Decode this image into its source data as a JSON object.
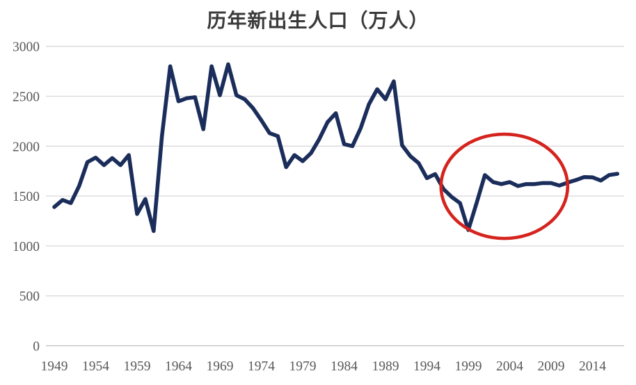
{
  "chart": {
    "title": "历年新出生人口（万人）"
  },
  "chart_data": {
    "type": "line",
    "title": "历年新出生人口（万人）",
    "xlabel": "",
    "ylabel": "",
    "years": [
      1949,
      1950,
      1951,
      1952,
      1953,
      1954,
      1955,
      1956,
      1957,
      1958,
      1959,
      1960,
      1961,
      1962,
      1963,
      1964,
      1965,
      1966,
      1967,
      1968,
      1969,
      1970,
      1971,
      1972,
      1973,
      1974,
      1975,
      1976,
      1977,
      1978,
      1979,
      1980,
      1981,
      1982,
      1983,
      1984,
      1985,
      1986,
      1987,
      1988,
      1989,
      1990,
      1991,
      1992,
      1993,
      1994,
      1995,
      1996,
      1997,
      1998,
      1999,
      2000,
      2001,
      2002,
      2003,
      2004,
      2005,
      2006,
      2007,
      2008,
      2009,
      2010,
      2011,
      2012,
      2013,
      2014,
      2015,
      2016,
      2017
    ],
    "values": [
      1390,
      1460,
      1430,
      1600,
      1840,
      1885,
      1810,
      1880,
      1810,
      1910,
      1320,
      1470,
      1150,
      2100,
      2800,
      2450,
      2480,
      2490,
      2170,
      2800,
      2510,
      2820,
      2510,
      2470,
      2380,
      2260,
      2130,
      2100,
      1790,
      1910,
      1850,
      1930,
      2070,
      2240,
      2330,
      2020,
      2000,
      2180,
      2420,
      2570,
      2470,
      2650,
      2010,
      1900,
      1830,
      1680,
      1720,
      1570,
      1490,
      1430,
      1160,
      1430,
      1710,
      1640,
      1620,
      1640,
      1600,
      1620,
      1620,
      1630,
      1630,
      1605,
      1635,
      1660,
      1690,
      1687,
      1655,
      1710,
      1723
    ],
    "x_tick_labels": [
      "1949",
      "1954",
      "1959",
      "1964",
      "1969",
      "1974",
      "1979",
      "1984",
      "1989",
      "1994",
      "1999",
      "2004",
      "2009",
      "2014"
    ],
    "y_ticks": [
      0,
      500,
      1000,
      1500,
      2000,
      2500,
      3000
    ],
    "ylim": [
      0,
      3000
    ],
    "xlim": [
      1949,
      2017
    ],
    "grid": true,
    "legend": "none",
    "line_color": "#1b2d5b",
    "gridline_color": "#d9d9d9",
    "axis_line_color": "#bfbfbf",
    "label_color": "#595959",
    "annotation": {
      "shape": "ellipse",
      "color": "#d5231d",
      "year_range": [
        1995.7,
        2011.0
      ],
      "value_range": [
        1075,
        2120
      ]
    }
  }
}
